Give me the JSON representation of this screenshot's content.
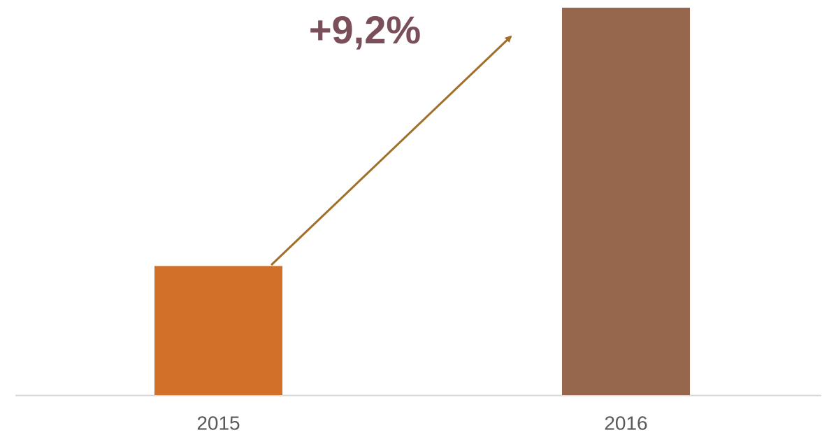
{
  "chart_data": {
    "type": "bar",
    "annotation": "+9,2%",
    "categories": [
      "2015",
      "2016"
    ],
    "values": [
      100,
      109.2
    ],
    "colors": [
      "#d2702a",
      "#96674c"
    ],
    "ylim": [
      95.4,
      109.3
    ]
  }
}
